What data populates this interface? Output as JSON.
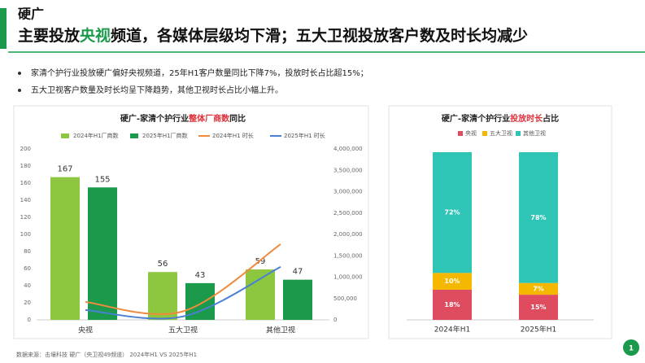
{
  "header": {
    "label": "硬广",
    "title": [
      {
        "text": "主要投放"
      },
      {
        "text": "央视",
        "highlight": true
      },
      {
        "text": "频道，各媒体层级均下滑；五大卫视投放客户数及时长均减少"
      }
    ],
    "highlight_color": "#1a9a4a"
  },
  "bullets": [
    "家清个护行业投放硬广偏好央视频道，25年H1客户数量同比下降7%，投放时长占比超15%；",
    "五大卫视客户数量及时长均呈下降趋势，其他卫视时长占比小幅上升。"
  ],
  "chart_data": [
    {
      "type": "combo",
      "title": [
        {
          "text": "硬广-家清个护行业"
        },
        {
          "text": "整体厂商数",
          "highlight": true
        },
        {
          "text": "同比"
        }
      ],
      "highlight_color": "#e0303a",
      "categories": [
        "央视",
        "五大卫视",
        "其他卫视"
      ],
      "series": [
        {
          "name": "2024年H1厂商数",
          "type": "bar",
          "color": "#8dc63f",
          "values": [
            167,
            56,
            59
          ]
        },
        {
          "name": "2025年H1厂商数",
          "type": "bar",
          "color": "#1a9a4a",
          "values": [
            155,
            43,
            47
          ]
        },
        {
          "name": "2024年H1 时长",
          "type": "line",
          "axis": "y2",
          "color": "#f08a3c",
          "values": [
            420000,
            200000,
            1770000
          ]
        },
        {
          "name": "2025年H1 时长",
          "type": "line",
          "axis": "y2",
          "color": "#4a7fd4",
          "values": [
            230000,
            80000,
            1240000
          ]
        }
      ],
      "ylim": [
        0,
        200
      ],
      "yticks": [
        0,
        20,
        40,
        60,
        80,
        100,
        120,
        140,
        160,
        180,
        200
      ],
      "y2lim": [
        0,
        4000000
      ],
      "y2ticks": [
        0,
        {
          "value": 500000,
          "label": "500,000"
        },
        {
          "value": 1000000,
          "label": "1,000,000"
        },
        {
          "value": 1500000,
          "label": "1,500,000"
        },
        {
          "value": 2000000,
          "label": "2,000,000"
        },
        {
          "value": 2500000,
          "label": "2,500,000"
        },
        {
          "value": 3000000,
          "label": "3,000,000"
        },
        {
          "value": 3500000,
          "label": "3,500,000"
        },
        {
          "value": 4000000,
          "label": "4,000,000"
        }
      ],
      "grid": false,
      "legend": "top"
    },
    {
      "type": "stacked_bar",
      "title": [
        {
          "text": "硬广-家清个护行业"
        },
        {
          "text": "投放时长",
          "highlight": true
        },
        {
          "text": "占比"
        }
      ],
      "highlight_color": "#e0303a",
      "categories": [
        "2024年H1",
        "2025年H1"
      ],
      "series": [
        {
          "name": "央视",
          "color": "#e04c5f",
          "values": [
            18,
            15
          ],
          "value_labels": [
            "18%",
            "15%"
          ]
        },
        {
          "name": "五大卫视",
          "color": "#f5b800",
          "values": [
            10,
            7
          ],
          "value_labels": [
            "10%",
            "7%"
          ]
        },
        {
          "name": "其他卫视",
          "color": "#2ec4b6",
          "values": [
            72,
            78
          ],
          "value_labels": [
            "72%",
            "78%"
          ]
        }
      ],
      "ylim": [
        0,
        100
      ],
      "legend": "top"
    }
  ],
  "source": "数据来源：击壤科技 硬广（央卫视49频道） 2024年H1 VS 2025年H1",
  "page_number": "1"
}
